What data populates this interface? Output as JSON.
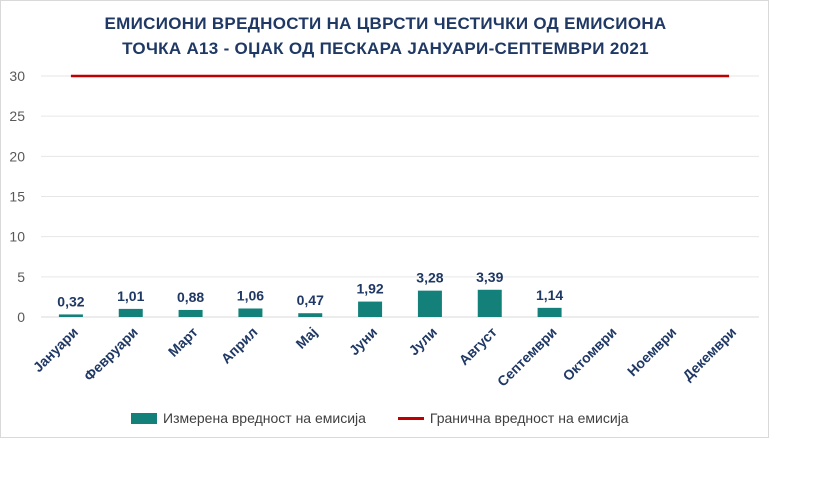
{
  "chart_data": {
    "type": "bar",
    "title_lines": [
      "ЕМИСИОНИ ВРЕДНОСТИ НА ЦВРСТИ ЧЕСТИЧКИ ОД ЕМИСИОНА",
      "ТОЧКА А13 - ОЏАК ОД ПЕСКАРА ЈАНУАРИ-СЕПТЕМВРИ 2021"
    ],
    "categories": [
      "Јануари",
      "Февруари",
      "Март",
      "Април",
      "Мај",
      "Јуни",
      "Јули",
      "Август",
      "Септември",
      "Октомври",
      "Ноември",
      "Декември"
    ],
    "series": [
      {
        "name": "Измерена вредност на емисија",
        "type": "bar",
        "color": "#138079",
        "values": [
          0.32,
          1.01,
          0.88,
          1.06,
          0.47,
          1.92,
          3.28,
          3.39,
          1.14,
          null,
          null,
          null
        ],
        "labels": [
          "0,32",
          "1,01",
          "0,88",
          "1,06",
          "0,47",
          "1,92",
          "3,28",
          "3,39",
          "1,14",
          "",
          "",
          ""
        ]
      },
      {
        "name": "Гранична вредност на емисија",
        "type": "line",
        "color": "#c00000",
        "values": [
          30,
          30,
          30,
          30,
          30,
          30,
          30,
          30,
          30,
          30,
          30,
          30
        ]
      }
    ],
    "y_ticks": [
      "0",
      "5",
      "10",
      "15",
      "20",
      "25",
      "30"
    ],
    "ylim": [
      0,
      30
    ],
    "grid": true,
    "legend_position": "bottom"
  }
}
